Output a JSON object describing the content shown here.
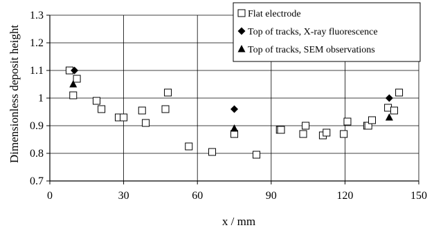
{
  "chart_data": {
    "type": "scatter",
    "xlabel": "x / mm",
    "ylabel": "Dimensionless deposit height",
    "xlim": [
      0,
      150
    ],
    "ylim": [
      0.7,
      1.3
    ],
    "x_ticks": [
      "0",
      "30",
      "60",
      "90",
      "120",
      "150"
    ],
    "y_ticks": [
      "0.7",
      "0.8",
      "0.9",
      "1",
      "1.1",
      "1.2",
      "1.3"
    ],
    "grid": true,
    "legend_position": "top-right",
    "series": [
      {
        "name": "Flat electrode",
        "marker": "open-square",
        "color": "#000000",
        "points": [
          [
            8,
            1.1
          ],
          [
            9.5,
            1.01
          ],
          [
            11,
            1.07
          ],
          [
            19,
            0.99
          ],
          [
            21,
            0.96
          ],
          [
            28,
            0.93
          ],
          [
            30,
            0.93
          ],
          [
            37.5,
            0.955
          ],
          [
            39,
            0.91
          ],
          [
            47,
            0.96
          ],
          [
            48,
            1.02
          ],
          [
            56.5,
            0.825
          ],
          [
            66,
            0.805
          ],
          [
            75,
            0.87
          ],
          [
            84,
            0.795
          ],
          [
            93.5,
            0.885
          ],
          [
            94,
            0.885
          ],
          [
            103,
            0.87
          ],
          [
            104,
            0.9
          ],
          [
            111,
            0.865
          ],
          [
            112.5,
            0.875
          ],
          [
            119.5,
            0.87
          ],
          [
            121,
            0.915
          ],
          [
            129,
            0.9
          ],
          [
            129.5,
            0.9
          ],
          [
            131,
            0.92
          ],
          [
            137.5,
            0.965
          ],
          [
            140,
            0.955
          ],
          [
            142,
            1.02
          ]
        ]
      },
      {
        "name": "Top of tracks, X-ray fluorescence",
        "marker": "filled-diamond",
        "color": "#000000",
        "points": [
          [
            10,
            1.1
          ],
          [
            75,
            0.96
          ],
          [
            138,
            1.0
          ]
        ]
      },
      {
        "name": "Top of tracks, SEM observations",
        "marker": "filled-triangle",
        "color": "#000000",
        "points": [
          [
            9.5,
            1.05
          ],
          [
            75,
            0.89
          ],
          [
            138,
            0.93
          ]
        ]
      }
    ]
  }
}
